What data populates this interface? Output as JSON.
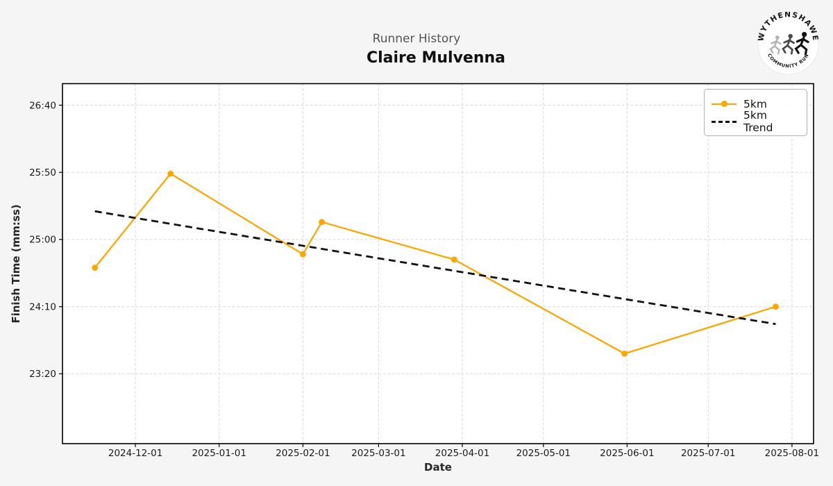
{
  "header": {
    "subtitle": "Runner History",
    "title": "Claire Mulvenna"
  },
  "logo": {
    "top_text": "WYTHENSHAWE",
    "bottom_text": "COMMUNITY RUN",
    "runner_colors": [
      "#b3b3b3",
      "#4a4a4a",
      "#111111"
    ]
  },
  "chart_data": {
    "type": "line",
    "title": "Claire Mulvenna",
    "subtitle": "Runner History",
    "xlabel": "Date",
    "ylabel": "Finish Time (mm:ss)",
    "grid": true,
    "legend_position": "upper right",
    "x_domain": [
      "2024-11-04",
      "2025-08-09"
    ],
    "x_ticks": [
      "2024-12-01",
      "2025-01-01",
      "2025-02-01",
      "2025-03-01",
      "2025-04-01",
      "2025-05-01",
      "2025-06-01",
      "2025-07-01",
      "2025-08-01"
    ],
    "y_ticks": [
      "23:20",
      "24:10",
      "25:00",
      "25:50",
      "26:40"
    ],
    "y_domain_mmss": [
      "22:28",
      "26:56"
    ],
    "series": [
      {
        "name": "5km",
        "color": "#FFA500",
        "style": "solid",
        "marker": "circle",
        "x": [
          "2024-11-16",
          "2024-12-14",
          "2025-02-01",
          "2025-02-08",
          "2025-03-29",
          "2025-05-31",
          "2025-07-26"
        ],
        "y": [
          "24:39",
          "25:49",
          "24:49",
          "25:13",
          "24:45",
          "23:35",
          "24:10"
        ]
      },
      {
        "name": "5km Trend",
        "color": "#111111",
        "style": "dashed",
        "marker": "none",
        "x": [
          "2024-11-16",
          "2025-07-26"
        ],
        "y": [
          "25:21",
          "23:57"
        ]
      }
    ]
  },
  "colors": {
    "figure_background": "#f5f5f6",
    "plot_background": "#ffffff",
    "gridline": "#d9d9d9",
    "spine": "#000000",
    "tick_label": "#1a1a1a"
  }
}
